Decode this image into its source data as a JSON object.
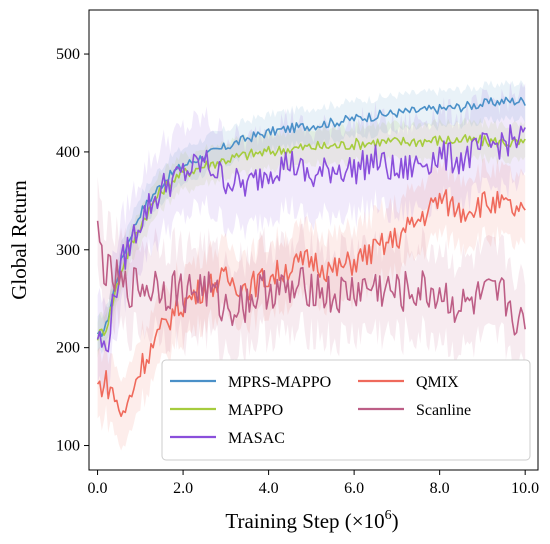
{
  "chart_data": {
    "type": "line",
    "title": "",
    "xlabel": "Training Step (×10",
    "xlabel_exponent": "6",
    "xlabel_close": ")",
    "ylabel": "Global Return",
    "xlim": [
      -0.2,
      10.3
    ],
    "ylim": [
      75,
      545
    ],
    "x_ticks": [
      0.0,
      2.0,
      4.0,
      6.0,
      8.0,
      10.0
    ],
    "x_tick_labels": [
      "0.0",
      "2.0",
      "4.0",
      "6.0",
      "8.0",
      "10.0"
    ],
    "y_ticks": [
      100,
      200,
      300,
      400,
      500
    ],
    "y_tick_labels": [
      "100",
      "200",
      "300",
      "400",
      "500"
    ],
    "grid": false,
    "legend_position": "bottom-center",
    "series": [
      {
        "name": "MPRS-MAPPO",
        "color": "#4a90c8",
        "x": [
          0.0,
          0.2,
          0.4,
          0.6,
          0.8,
          1.0,
          1.2,
          1.4,
          1.6,
          1.8,
          2.0,
          2.5,
          3.0,
          3.5,
          4.0,
          4.5,
          5.0,
          5.5,
          6.0,
          6.5,
          7.0,
          7.5,
          8.0,
          8.5,
          9.0,
          9.5,
          10.0
        ],
        "values": [
          210,
          222,
          262,
          295,
          318,
          338,
          350,
          362,
          372,
          380,
          386,
          396,
          405,
          414,
          420,
          424,
          427,
          430,
          434,
          437,
          440,
          442,
          444,
          446,
          449,
          452,
          452
        ]
      },
      {
        "name": "MAPPO",
        "color": "#a6cc3e",
        "x": [
          0.0,
          0.2,
          0.4,
          0.6,
          0.8,
          1.0,
          1.2,
          1.4,
          1.6,
          1.8,
          2.0,
          2.5,
          3.0,
          3.5,
          4.0,
          4.5,
          5.0,
          5.5,
          6.0,
          6.5,
          7.0,
          7.5,
          8.0,
          8.5,
          9.0,
          9.5,
          10.0
        ],
        "values": [
          212,
          220,
          255,
          285,
          305,
          325,
          340,
          355,
          365,
          373,
          378,
          386,
          392,
          397,
          400,
          403,
          405,
          406,
          408,
          410,
          410,
          411,
          412,
          412,
          411,
          410,
          408
        ]
      },
      {
        "name": "MASAC",
        "color": "#8a4fdb",
        "x": [
          0.0,
          0.2,
          0.4,
          0.6,
          0.8,
          1.0,
          1.2,
          1.4,
          1.6,
          1.8,
          2.0,
          2.5,
          3.0,
          3.5,
          4.0,
          4.5,
          5.0,
          5.5,
          6.0,
          6.5,
          7.0,
          7.5,
          8.0,
          8.5,
          9.0,
          9.5,
          10.0
        ],
        "values": [
          213,
          195,
          255,
          290,
          310,
          330,
          345,
          355,
          368,
          372,
          378,
          390,
          372,
          365,
          382,
          390,
          372,
          384,
          382,
          392,
          378,
          388,
          396,
          392,
          404,
          410,
          415
        ]
      },
      {
        "name": "QMIX",
        "color": "#ef6a5c",
        "x": [
          0.0,
          0.2,
          0.4,
          0.6,
          0.8,
          1.0,
          1.2,
          1.4,
          1.6,
          1.8,
          2.0,
          2.5,
          3.0,
          3.5,
          4.0,
          4.5,
          5.0,
          5.5,
          6.0,
          6.5,
          7.0,
          7.5,
          8.0,
          8.5,
          9.0,
          9.5,
          10.0
        ],
        "values": [
          160,
          165,
          150,
          128,
          155,
          180,
          195,
          210,
          225,
          238,
          245,
          262,
          270,
          262,
          272,
          282,
          290,
          278,
          288,
          300,
          312,
          330,
          352,
          340,
          348,
          345,
          335
        ]
      },
      {
        "name": "Scanline",
        "color": "#bd5e86",
        "x": [
          0.0,
          0.2,
          0.4,
          0.6,
          0.8,
          1.0,
          1.2,
          1.4,
          1.6,
          1.8,
          2.0,
          2.5,
          3.0,
          3.5,
          4.0,
          4.5,
          5.0,
          5.5,
          6.0,
          6.5,
          7.0,
          7.5,
          8.0,
          8.5,
          9.0,
          9.5,
          10.0
        ],
        "values": [
          315,
          275,
          270,
          260,
          262,
          265,
          260,
          268,
          258,
          262,
          256,
          262,
          240,
          248,
          262,
          255,
          265,
          250,
          258,
          262,
          255,
          258,
          256,
          240,
          250,
          252,
          215
        ]
      }
    ]
  }
}
